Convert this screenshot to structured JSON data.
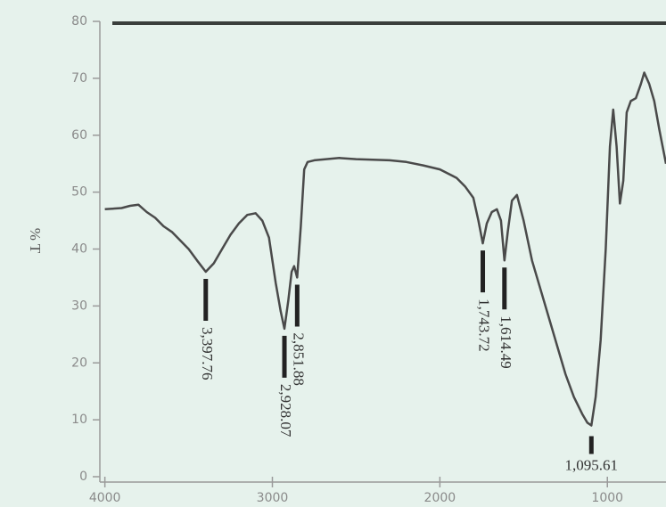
{
  "chart_data": {
    "type": "line",
    "y_label": "% T",
    "x": [
      4000,
      3900,
      3850,
      3800,
      3750,
      3700,
      3650,
      3600,
      3550,
      3500,
      3450,
      3397.76,
      3350,
      3300,
      3250,
      3200,
      3150,
      3100,
      3060,
      3020,
      2980,
      2950,
      2928.07,
      2905,
      2885,
      2870,
      2851.88,
      2830,
      2810,
      2790,
      2750,
      2600,
      2500,
      2300,
      2200,
      2100,
      2000,
      1900,
      1850,
      1800,
      1770,
      1743.72,
      1720,
      1690,
      1660,
      1635,
      1614.49,
      1595,
      1570,
      1540,
      1500,
      1450,
      1400,
      1350,
      1300,
      1250,
      1200,
      1150,
      1120,
      1095.61,
      1070,
      1040,
      1010,
      985,
      965,
      945,
      925,
      905,
      885,
      860,
      830,
      800,
      780,
      750,
      720,
      690,
      650
    ],
    "values": [
      47,
      47.2,
      47.6,
      47.8,
      46.5,
      45.5,
      44,
      43,
      41.5,
      40,
      38,
      36,
      37.5,
      40,
      42.5,
      44.5,
      46,
      46.3,
      45,
      42,
      34,
      29,
      26,
      31,
      36,
      37,
      35,
      44,
      54,
      55.3,
      55.6,
      56,
      55.8,
      55.6,
      55.3,
      54.7,
      54,
      52.5,
      51,
      49,
      45,
      41,
      44.5,
      46.5,
      47,
      45,
      38,
      43,
      48.5,
      49.5,
      45,
      38,
      33,
      28,
      23,
      18,
      14,
      11,
      9.5,
      9,
      14,
      24,
      40,
      58,
      64.5,
      58,
      48,
      52,
      64,
      66,
      66.5,
      69,
      71,
      69,
      66,
      61,
      55
    ],
    "color": "#4a4a4a",
    "xlim": [
      4030,
      650
    ],
    "xticks": [
      4000,
      3000,
      2000,
      1000
    ],
    "ylim": [
      0,
      80
    ],
    "yticks": [
      0,
      10,
      20,
      30,
      40,
      50,
      60,
      70,
      80
    ],
    "annotations": [
      {
        "value": 3397.76,
        "label": "3,397.76"
      },
      {
        "value": 2928.07,
        "label": "2,928.07"
      },
      {
        "value": 2851.88,
        "label": "2,851.88"
      },
      {
        "value": 1743.72,
        "label": "1,743.72"
      },
      {
        "value": 1614.49,
        "label": "1,614.49"
      },
      {
        "value": 1095.61,
        "label": "1,095.61"
      }
    ]
  }
}
